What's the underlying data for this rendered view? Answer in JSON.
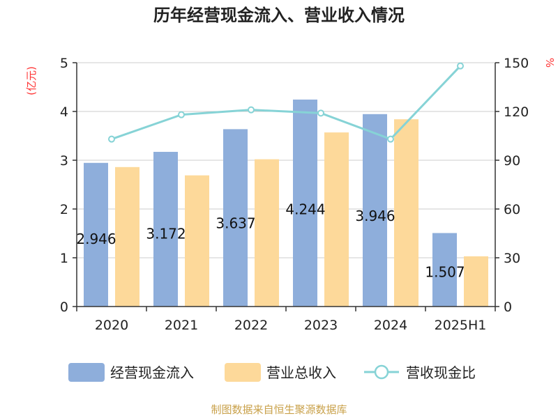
{
  "chart_data": {
    "type": "bar",
    "title": "历年经营现金流入、营业收入情况",
    "categories": [
      "2020",
      "2021",
      "2022",
      "2023",
      "2024",
      "2025H1"
    ],
    "y_left": {
      "unit": "(亿元)",
      "ylim": [
        0,
        5
      ],
      "ticks": [
        "0",
        "1",
        "2",
        "3",
        "4",
        "5"
      ]
    },
    "y_right": {
      "unit": "%",
      "ylim": [
        0,
        150
      ],
      "ticks": [
        "0",
        "30",
        "60",
        "90",
        "120",
        "150"
      ]
    },
    "series": [
      {
        "name": "经营现金流入",
        "type": "bar",
        "axis": "left",
        "color": "#8eaedb",
        "values": [
          2.946,
          3.172,
          3.637,
          4.244,
          3.946,
          1.507
        ],
        "labels": [
          "2.946",
          "3.172",
          "3.637",
          "4.244",
          "3.946",
          "1.507"
        ]
      },
      {
        "name": "营业总收入",
        "type": "bar",
        "axis": "left",
        "color": "#fdd99a",
        "values": [
          2.86,
          2.69,
          3.02,
          3.57,
          3.84,
          1.03
        ]
      },
      {
        "name": "营收现金比",
        "type": "line",
        "axis": "right",
        "color": "#86d3d6",
        "values": [
          103,
          118,
          121,
          119,
          103,
          148
        ]
      }
    ],
    "grid": true,
    "legend_position": "bottom",
    "source": "制图数据来自恒生聚源数据库",
    "colors": {
      "unit_label": "#ff3333",
      "source_text": "#c9a14a",
      "grid": "#cccccc",
      "axis": "#333333"
    }
  }
}
